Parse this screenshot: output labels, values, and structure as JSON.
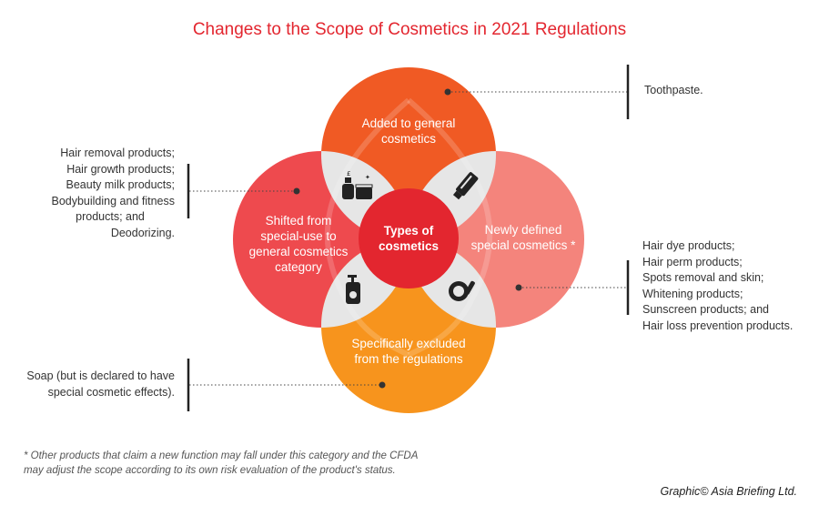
{
  "title": "Changes to the Scope of Cosmetics in 2021 Regulations",
  "center": {
    "line1": "Types of",
    "line2": "cosmetics"
  },
  "circles": {
    "top": {
      "line1": "Added to general",
      "line2": "cosmetics",
      "color": "#f05a24"
    },
    "left": {
      "line1": "Shifted from",
      "line2": "special-use to",
      "line3": "general cosmetics",
      "line4": "category",
      "color": "#ee4a4e"
    },
    "right": {
      "line1": "Newly defined",
      "line2": "special cosmetics *",
      "color": "#f4847c"
    },
    "bottom": {
      "line1": "Specifically excluded",
      "line2": "from the regulations",
      "color": "#f7941d"
    }
  },
  "center_color": "#e3262f",
  "notes": {
    "top_right": [
      "Toothpaste."
    ],
    "left": [
      "Hair removal products;",
      "Hair growth products;",
      "Beauty milk products;",
      "Bodybuilding and fitness",
      "products; and",
      "Deodorizing."
    ],
    "right": [
      "Hair dye products;",
      "Hair perm products;",
      "Spots removal and skin;",
      "Whitening products;",
      "Sunscreen products; and",
      "Hair loss prevention products."
    ],
    "bottom_left": [
      "Soap (but is declared to have",
      "special cosmetic effects)."
    ]
  },
  "footnote": [
    "* Other products that claim a new function may fall under this category and the CFDA",
    " may adjust the scope according to its own risk evaluation of the product's status."
  ],
  "credit": "Graphic© Asia Briefing Ltd.",
  "icons": [
    "cosmetics-bottles-icon",
    "tube-icon",
    "pump-bottle-icon",
    "compact-brush-icon"
  ]
}
